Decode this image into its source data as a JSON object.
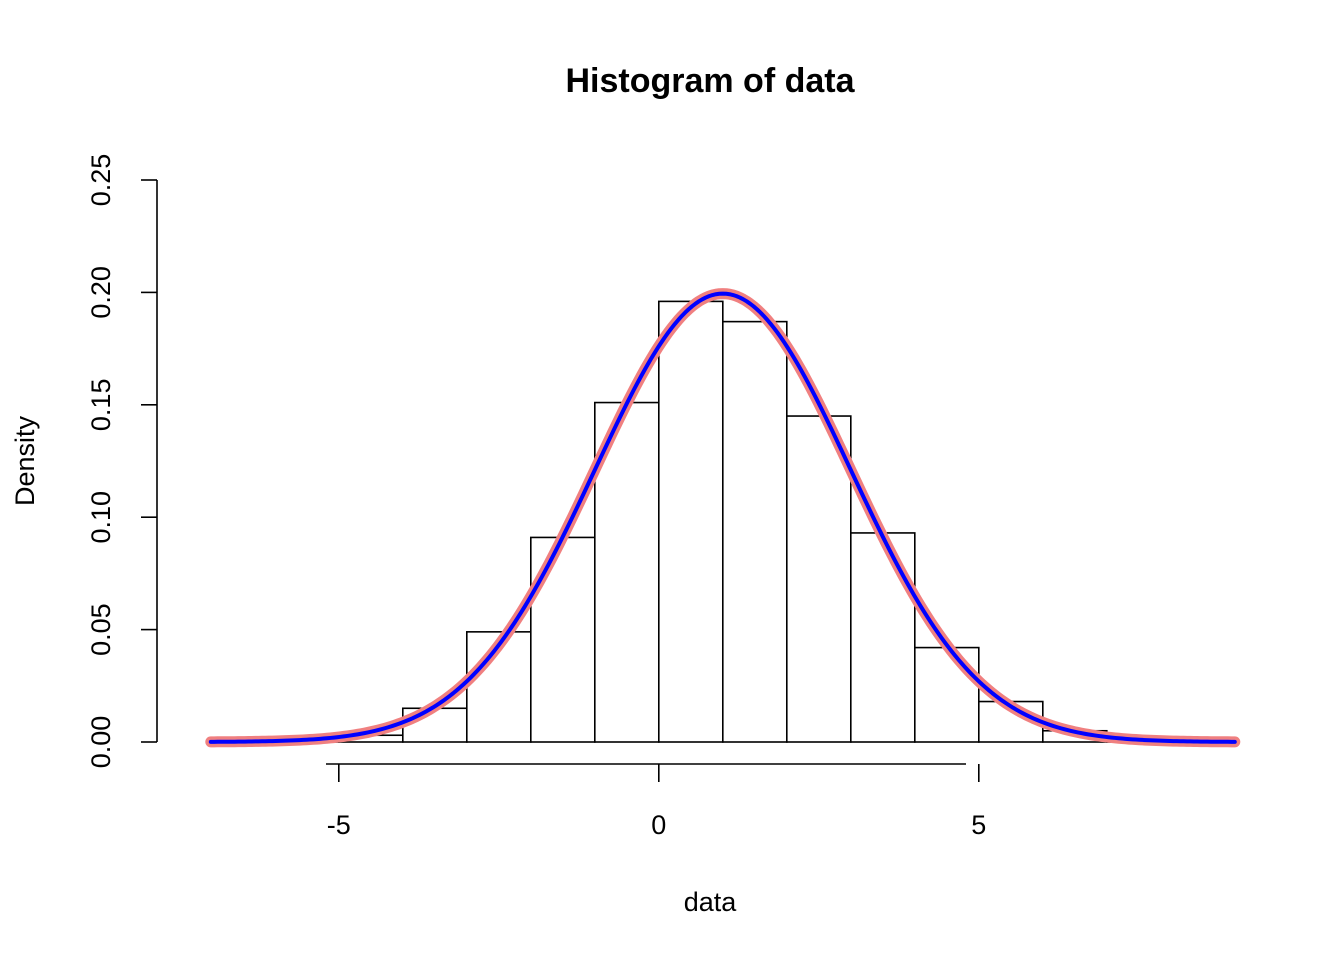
{
  "chart_data": {
    "type": "bar",
    "title": "Histogram of data",
    "xlabel": "data",
    "ylabel": "Density",
    "xlim": [
      -7.2,
      8.8
    ],
    "ylim": [
      0,
      0.25
    ],
    "x_ticks": [
      -5,
      0,
      5
    ],
    "x_tick_labels": [
      "-5",
      "0",
      "5"
    ],
    "y_ticks": [
      0,
      0.05,
      0.1,
      0.15,
      0.2,
      0.25
    ],
    "y_tick_labels": [
      "0.00",
      "0.05",
      "0.10",
      "0.15",
      "0.20",
      "0.25"
    ],
    "grid": false,
    "bins": [
      {
        "start": -6,
        "end": -5,
        "density": 0.001
      },
      {
        "start": -5,
        "end": -4,
        "density": 0.003
      },
      {
        "start": -4,
        "end": -3,
        "density": 0.015
      },
      {
        "start": -3,
        "end": -2,
        "density": 0.049
      },
      {
        "start": -2,
        "end": -1,
        "density": 0.091
      },
      {
        "start": -1,
        "end": 0,
        "density": 0.151
      },
      {
        "start": 0,
        "end": 1,
        "density": 0.196
      },
      {
        "start": 1,
        "end": 2,
        "density": 0.187
      },
      {
        "start": 2,
        "end": 3,
        "density": 0.145
      },
      {
        "start": 3,
        "end": 4,
        "density": 0.093
      },
      {
        "start": 4,
        "end": 5,
        "density": 0.042
      },
      {
        "start": 5,
        "end": 6,
        "density": 0.018
      },
      {
        "start": 6,
        "end": 7,
        "density": 0.005
      },
      {
        "start": 7,
        "end": 8,
        "density": 0.001
      }
    ],
    "curves": [
      {
        "kind": "normal-density",
        "mean": 1,
        "sd": 2,
        "from": -7,
        "to": 9,
        "color": "#f08080",
        "style": "thick"
      },
      {
        "kind": "normal-density",
        "mean": 1,
        "sd": 2,
        "from": -7,
        "to": 9,
        "color": "#0000ff",
        "style": "thin"
      }
    ]
  }
}
